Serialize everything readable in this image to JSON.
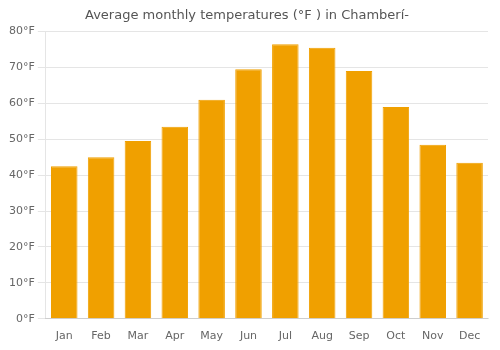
{
  "chart_data": {
    "type": "bar",
    "title": "Average monthly temperatures (°F ) in Chamberí-",
    "categories": [
      "Jan",
      "Feb",
      "Mar",
      "Apr",
      "May",
      "Jun",
      "Jul",
      "Aug",
      "Sep",
      "Oct",
      "Nov",
      "Dec"
    ],
    "values": [
      42.5,
      45.0,
      49.5,
      53.5,
      61.0,
      69.5,
      76.5,
      75.5,
      69.0,
      59.0,
      48.5,
      43.5
    ],
    "color": "#F0A000",
    "ylim": [
      0,
      80
    ],
    "yticks": [
      {
        "value": 0,
        "label": "0°F"
      },
      {
        "value": 10,
        "label": "10°F"
      },
      {
        "value": 20,
        "label": "20°F"
      },
      {
        "value": 30,
        "label": "30°F"
      },
      {
        "value": 40,
        "label": "40°F"
      },
      {
        "value": 50,
        "label": "50°F"
      },
      {
        "value": 60,
        "label": "60°F"
      },
      {
        "value": 70,
        "label": "70°F"
      },
      {
        "value": 80,
        "label": "80°F"
      }
    ],
    "grid": true
  }
}
